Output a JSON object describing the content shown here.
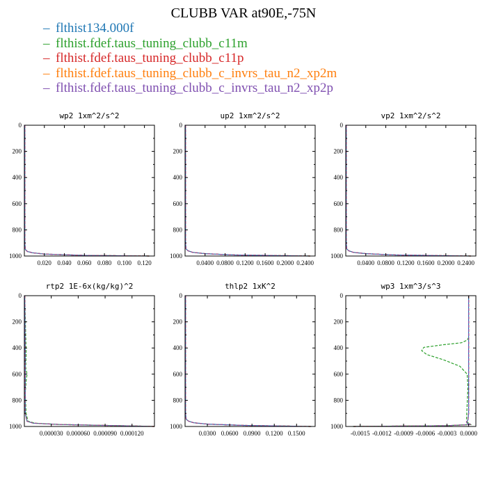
{
  "chart_data": {
    "type": "line",
    "title": "CLUBB VAR at90E,-75N",
    "legend": [
      {
        "name": "flthist134.000f",
        "color": "#1f77b4"
      },
      {
        "name": "flthist.fdef.taus_tuning_clubb_c11m",
        "color": "#2ca02c"
      },
      {
        "name": "flthist.fdef.taus_tuning_clubb_c11p",
        "color": "#d62728"
      },
      {
        "name": "flthist.fdef.taus_tuning_clubb_c_invrs_tau_n2_xp2m",
        "color": "#ff7f0e"
      },
      {
        "name": "flthist.fdef.taus_tuning_clubb_c_invrs_tau_n2_xp2p",
        "color": "#7f4fb0"
      }
    ],
    "panels": [
      {
        "title": "wp2  1xm^2/s^2",
        "xlim": [
          0,
          0.13
        ],
        "ylim": [
          1000,
          0
        ],
        "xticks": [
          "0.020",
          "0.040",
          "0.060",
          "0.080",
          "0.100",
          "0.120"
        ],
        "xtick_values": [
          0.02,
          0.04,
          0.06,
          0.08,
          0.1,
          0.12
        ],
        "yticks": [
          "0",
          "200",
          "400",
          "600",
          "800",
          "1000"
        ],
        "series": [
          {
            "x": [
              0.0005,
              0.0005,
              0.001,
              0.003,
              0.008,
              0.02,
              0.06,
              0.125
            ],
            "y": [
              0,
              900,
              950,
              965,
              975,
              985,
              995,
              1000
            ]
          },
          {
            "x": [
              0.0005,
              0.0005,
              0.001,
              0.003,
              0.008,
              0.02,
              0.06,
              0.125
            ],
            "y": [
              0,
              900,
              950,
              965,
              975,
              985,
              995,
              1000
            ]
          },
          {
            "x": [
              0.0005,
              0.0005,
              0.001,
              0.003,
              0.008,
              0.02,
              0.06,
              0.125
            ],
            "y": [
              0,
              900,
              950,
              965,
              975,
              985,
              995,
              1000
            ]
          },
          {
            "x": [
              0.0005,
              0.0005,
              0.001,
              0.003,
              0.008,
              0.02,
              0.06,
              0.125
            ],
            "y": [
              0,
              900,
              950,
              965,
              975,
              985,
              995,
              1000
            ]
          },
          {
            "x": [
              0.0005,
              0.0005,
              0.001,
              0.003,
              0.008,
              0.02,
              0.06,
              0.125
            ],
            "y": [
              0,
              900,
              950,
              965,
              975,
              985,
              995,
              1000
            ]
          }
        ]
      },
      {
        "title": "up2  1xm^2/s^2",
        "xlim": [
          0,
          0.26
        ],
        "ylim": [
          1000,
          0
        ],
        "xticks": [
          "0.0400",
          "0.0800",
          "0.1200",
          "0.1600",
          "0.2000",
          "0.2400"
        ],
        "xtick_values": [
          0.04,
          0.08,
          0.12,
          0.16,
          0.2,
          0.24
        ],
        "yticks": [
          "0",
          "200",
          "400",
          "600",
          "800",
          "1000"
        ],
        "series": [
          {
            "x": [
              0.001,
              0.001,
              0.002,
              0.006,
              0.015,
              0.04,
              0.1,
              0.25
            ],
            "y": [
              0,
              900,
              945,
              960,
              972,
              982,
              992,
              1000
            ]
          },
          {
            "x": [
              0.001,
              0.001,
              0.002,
              0.006,
              0.015,
              0.04,
              0.1,
              0.25
            ],
            "y": [
              0,
              900,
              945,
              960,
              972,
              982,
              992,
              1000
            ]
          },
          {
            "x": [
              0.001,
              0.001,
              0.002,
              0.006,
              0.015,
              0.04,
              0.1,
              0.25
            ],
            "y": [
              0,
              900,
              945,
              960,
              972,
              982,
              992,
              1000
            ]
          },
          {
            "x": [
              0.001,
              0.001,
              0.002,
              0.006,
              0.015,
              0.04,
              0.1,
              0.25
            ],
            "y": [
              0,
              900,
              945,
              960,
              972,
              982,
              992,
              1000
            ]
          },
          {
            "x": [
              0.001,
              0.001,
              0.002,
              0.006,
              0.015,
              0.04,
              0.1,
              0.25
            ],
            "y": [
              0,
              900,
              945,
              960,
              972,
              982,
              992,
              1000
            ]
          }
        ]
      },
      {
        "title": "vp2  1xm^2/s^2",
        "xlim": [
          0,
          0.26
        ],
        "ylim": [
          1000,
          0
        ],
        "xticks": [
          "0.0400",
          "0.0800",
          "0.1200",
          "0.1600",
          "0.2000",
          "0.2400"
        ],
        "xtick_values": [
          0.04,
          0.08,
          0.12,
          0.16,
          0.2,
          0.24
        ],
        "yticks": [
          "0",
          "200",
          "400",
          "600",
          "800",
          "1000"
        ],
        "series": [
          {
            "x": [
              0.001,
              0.001,
              0.002,
              0.006,
              0.015,
              0.04,
              0.1,
              0.25
            ],
            "y": [
              0,
              900,
              945,
              960,
              972,
              982,
              992,
              1000
            ]
          },
          {
            "x": [
              0.001,
              0.001,
              0.002,
              0.006,
              0.015,
              0.04,
              0.1,
              0.25
            ],
            "y": [
              0,
              900,
              945,
              960,
              972,
              982,
              992,
              1000
            ]
          },
          {
            "x": [
              0.001,
              0.001,
              0.002,
              0.006,
              0.015,
              0.04,
              0.1,
              0.25
            ],
            "y": [
              0,
              900,
              945,
              960,
              972,
              982,
              992,
              1000
            ]
          },
          {
            "x": [
              0.001,
              0.001,
              0.002,
              0.006,
              0.015,
              0.04,
              0.1,
              0.25
            ],
            "y": [
              0,
              900,
              945,
              960,
              972,
              982,
              992,
              1000
            ]
          },
          {
            "x": [
              0.001,
              0.001,
              0.002,
              0.006,
              0.015,
              0.04,
              0.1,
              0.25
            ],
            "y": [
              0,
              900,
              945,
              960,
              972,
              982,
              992,
              1000
            ]
          }
        ]
      },
      {
        "title": "rtp2  1E-6x(kg/kg)^2",
        "xlim": [
          0,
          0.000145
        ],
        "ylim": [
          1000,
          0
        ],
        "xticks": [
          "0.000030",
          "0.000060",
          "0.000090",
          "0.000120"
        ],
        "xtick_values": [
          3e-05,
          6e-05,
          9e-05,
          0.00012
        ],
        "yticks": [
          "0",
          "200",
          "400",
          "600",
          "800",
          "1000"
        ],
        "series": [
          {
            "x": [
              5e-07,
              1e-06,
              1e-06,
              3e-06,
              1e-05,
              4e-05,
              0.0001,
              0.000145
            ],
            "y": [
              0,
              500,
              900,
              960,
              975,
              985,
              993,
              1000
            ]
          },
          {
            "x": [
              5e-07,
              2e-06,
              1.5e-06,
              3e-06,
              2e-06,
              1e-06,
              2e-06,
              4e-06,
              1.2e-05,
              4e-05,
              0.0001,
              0.000145
            ],
            "y": [
              0,
              450,
              550,
              600,
              650,
              750,
              900,
              960,
              975,
              985,
              993,
              1000
            ]
          },
          {
            "x": [
              5e-07,
              1e-06,
              1e-06,
              3e-06,
              1e-05,
              4e-05,
              0.0001,
              0.000145
            ],
            "y": [
              0,
              500,
              900,
              960,
              975,
              985,
              993,
              1000
            ]
          },
          {
            "x": [
              5e-07,
              1e-06,
              1e-06,
              3e-06,
              1e-05,
              4e-05,
              0.0001,
              0.000145
            ],
            "y": [
              0,
              500,
              900,
              960,
              975,
              985,
              993,
              1000
            ]
          },
          {
            "x": [
              5e-07,
              1e-06,
              1e-06,
              3e-06,
              1e-05,
              4e-05,
              0.0001,
              0.000145
            ],
            "y": [
              0,
              500,
              900,
              960,
              975,
              985,
              993,
              1000
            ]
          }
        ]
      },
      {
        "title": "thlp2  1xK^2",
        "xlim": [
          0,
          0.175
        ],
        "ylim": [
          1000,
          0
        ],
        "xticks": [
          "0.0300",
          "0.0600",
          "0.0900",
          "0.1200",
          "0.1500"
        ],
        "xtick_values": [
          0.03,
          0.06,
          0.09,
          0.12,
          0.15
        ],
        "yticks": [
          "0",
          "200",
          "400",
          "600",
          "800",
          "1000"
        ],
        "series": [
          {
            "x": [
              0.0007,
              0.0007,
              0.0015,
              0.005,
              0.012,
              0.03,
              0.08,
              0.17
            ],
            "y": [
              0,
              900,
              945,
              960,
              972,
              982,
              992,
              1000
            ]
          },
          {
            "x": [
              0.0007,
              0.0007,
              0.0015,
              0.005,
              0.012,
              0.03,
              0.08,
              0.17
            ],
            "y": [
              0,
              900,
              945,
              960,
              972,
              982,
              992,
              1000
            ]
          },
          {
            "x": [
              0.0007,
              0.0007,
              0.0015,
              0.005,
              0.012,
              0.03,
              0.08,
              0.17
            ],
            "y": [
              0,
              900,
              945,
              960,
              972,
              982,
              992,
              1000
            ]
          },
          {
            "x": [
              0.0007,
              0.0007,
              0.0015,
              0.005,
              0.012,
              0.03,
              0.08,
              0.17
            ],
            "y": [
              0,
              900,
              945,
              960,
              972,
              982,
              992,
              1000
            ]
          },
          {
            "x": [
              0.0007,
              0.0007,
              0.0015,
              0.005,
              0.012,
              0.03,
              0.08,
              0.17
            ],
            "y": [
              0,
              900,
              945,
              960,
              972,
              982,
              992,
              1000
            ]
          }
        ]
      },
      {
        "title": "wp3  1xm^3/s^3",
        "xlim": [
          -0.0017,
          0.0001
        ],
        "ylim": [
          1000,
          0
        ],
        "xticks": [
          "-0.0015",
          "-0.0012",
          "-0.0009",
          "-0.0006",
          "-0.0003",
          "0.0000"
        ],
        "xtick_values": [
          -0.0015,
          -0.0012,
          -0.0009,
          -0.0006,
          -0.0003,
          0.0
        ],
        "yticks": [
          "0",
          "200",
          "400",
          "600",
          "800",
          "1000"
        ],
        "series": [
          {
            "x": [
              0.0,
              0.0,
              -1e-05,
              -3e-05,
              -2e-05,
              3e-05,
              -0.0003,
              -0.0016
            ],
            "y": [
              0,
              900,
              950,
              965,
              975,
              985,
              994,
              1000
            ]
          },
          {
            "x": [
              0.0,
              0.0,
              -2e-05,
              -0.0001,
              -0.00035,
              -0.00062,
              -0.00065,
              -0.00058,
              -0.00035,
              -0.00012,
              -2e-05,
              -1e-05,
              -3e-05,
              -2e-05,
              3e-05,
              -0.0003,
              -0.0016
            ],
            "y": [
              0,
              320,
              340,
              360,
              375,
              395,
              420,
              450,
              490,
              540,
              600,
              700,
              950,
              965,
              985,
              994,
              1000
            ]
          },
          {
            "x": [
              0.0,
              0.0,
              -1e-05,
              -3e-05,
              -2e-05,
              3e-05,
              -0.0003,
              -0.0016
            ],
            "y": [
              0,
              900,
              950,
              965,
              975,
              985,
              994,
              1000
            ]
          },
          {
            "x": [
              0.0,
              0.0,
              -1e-05,
              -3e-05,
              -2e-05,
              3e-05,
              -0.0003,
              -0.0016
            ],
            "y": [
              0,
              900,
              950,
              965,
              975,
              985,
              994,
              1000
            ]
          },
          {
            "x": [
              0.0,
              0.0,
              -1e-05,
              -3e-05,
              -2e-05,
              3e-05,
              -0.0003,
              -0.0016
            ],
            "y": [
              0,
              900,
              950,
              965,
              975,
              985,
              994,
              1000
            ]
          }
        ]
      }
    ]
  }
}
